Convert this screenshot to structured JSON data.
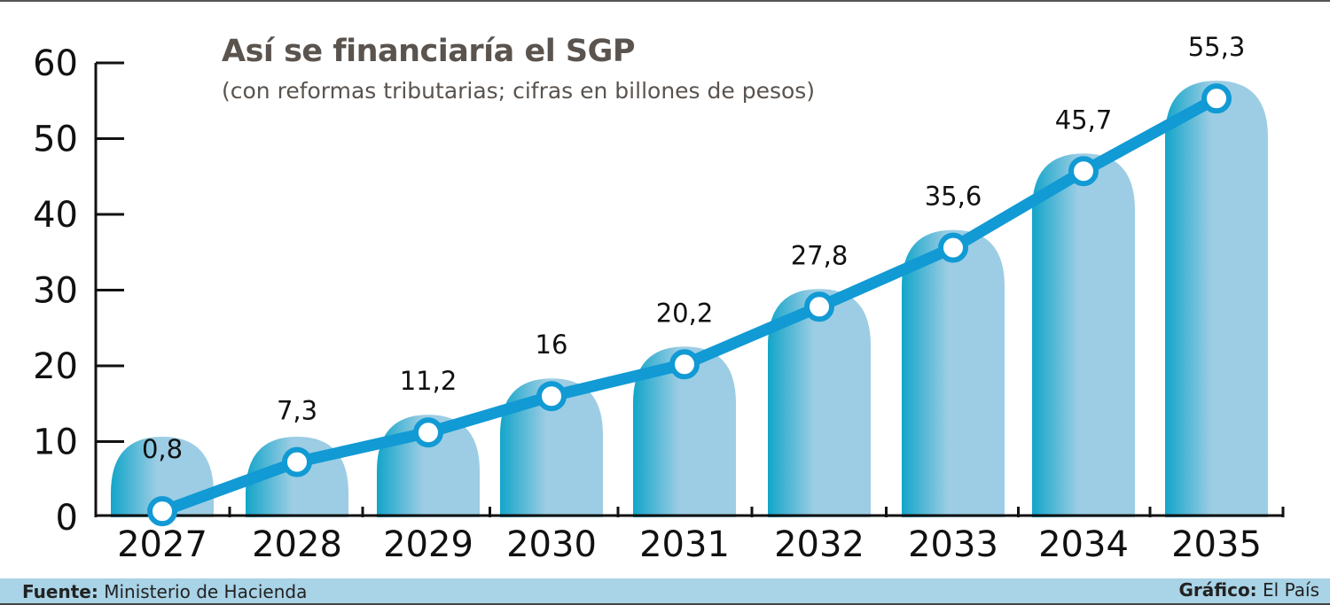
{
  "chart_data": {
    "type": "bar+line",
    "title": "Así se financiaría el SGP",
    "subtitle": "(con reformas tributarias; cifras en billones de pesos)",
    "categories": [
      "2027",
      "2028",
      "2029",
      "2030",
      "2031",
      "2032",
      "2033",
      "2034",
      "2035"
    ],
    "values": [
      0.8,
      7.3,
      11.2,
      16,
      20.2,
      27.8,
      35.6,
      45.7,
      55.3
    ],
    "data_labels": [
      "0,8",
      "7,3",
      "11,2",
      "16",
      "20,2",
      "27,8",
      "35,6",
      "45,7",
      "55,3"
    ],
    "ylim": [
      0,
      60
    ],
    "yticks": [
      "0",
      "10",
      "20",
      "30",
      "40",
      "50",
      "60"
    ],
    "grid": false,
    "colors": {
      "line": "#119ad4",
      "bar_dark": "#12a5c9",
      "bar_light": "#9ccde4",
      "footer": "#a9d3e6"
    }
  },
  "footer": {
    "source_label": "Fuente:",
    "source": "Ministerio de Hacienda",
    "credit_label": "Gráfico:",
    "credit": "El País"
  }
}
